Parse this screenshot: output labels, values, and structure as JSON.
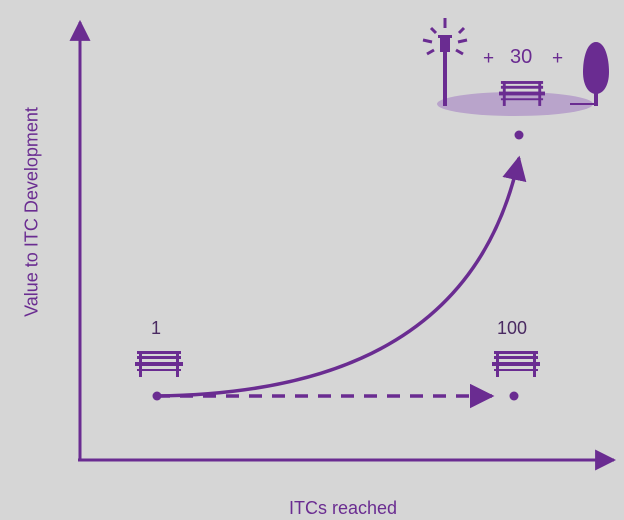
{
  "diagram": {
    "y_axis_label": "Value to ITC Development",
    "x_axis_label": "ITCs reached",
    "start_label": "1",
    "end_label": "100",
    "plus_left": "+",
    "amenity_count": "30",
    "plus_right": "+",
    "colors": {
      "primary": "#6a2c91",
      "bench": "#6a2c91",
      "ground": "#b9a4cb",
      "background": "#d6d6d6"
    },
    "icons": [
      "bench-icon",
      "bench-icon",
      "lamp-post-icon",
      "bench-icon",
      "tree-icon",
      "ground-ellipse"
    ]
  }
}
